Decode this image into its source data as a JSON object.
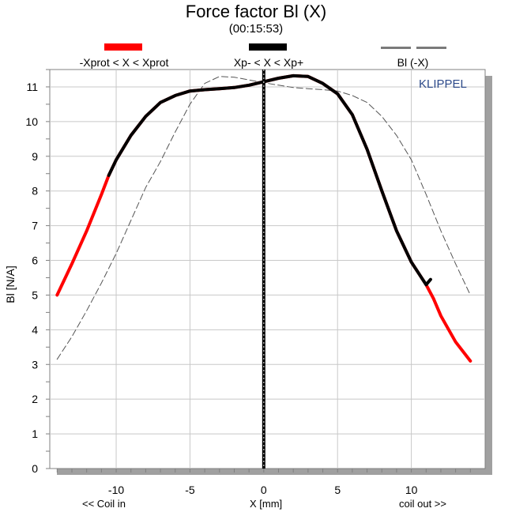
{
  "chart_data": {
    "type": "line",
    "title": "Force factor Bl (X)",
    "subtitle": "(00:15:53)",
    "xlabel": "X [mm]",
    "ylabel": "Bl [N/A]",
    "x_note_left": "<< Coil in",
    "x_note_right": "coil out >>",
    "watermark": "KLIPPEL",
    "xlim": [
      -14.5,
      15
    ],
    "ylim": [
      0,
      11.5
    ],
    "x_ticks": [
      -10,
      -5,
      0,
      5,
      10
    ],
    "y_ticks": [
      0,
      1,
      2,
      3,
      4,
      5,
      6,
      7,
      8,
      9,
      10,
      11
    ],
    "grid": true,
    "legend_position": "top",
    "vertical_marker_x": 0,
    "series": [
      {
        "name": "-Xprot < X < Xprot",
        "color": "#ff0000",
        "style": "solid-thick",
        "x": [
          -14,
          -13,
          -12,
          -11,
          -10.5,
          -10,
          -9,
          -8,
          -7,
          -6,
          -5,
          -4,
          -3,
          -2,
          -1,
          0,
          1,
          2,
          3,
          4,
          5,
          6,
          7,
          8,
          9,
          10,
          11,
          11.5,
          12,
          13,
          14
        ],
        "y": [
          5.0,
          5.9,
          6.85,
          7.9,
          8.45,
          8.9,
          9.6,
          10.15,
          10.55,
          10.75,
          10.88,
          10.92,
          10.95,
          10.98,
          11.05,
          11.15,
          11.25,
          11.32,
          11.3,
          11.1,
          10.8,
          10.2,
          9.2,
          8.0,
          6.85,
          5.95,
          5.3,
          4.9,
          4.4,
          3.65,
          3.1
        ]
      },
      {
        "name": "Xp- < X < Xp+",
        "color": "#000000",
        "style": "solid-thick",
        "x": [
          -10.5,
          -10,
          -9,
          -8,
          -7,
          -6,
          -5,
          -4,
          -3,
          -2,
          -1,
          0,
          1,
          2,
          3,
          4,
          5,
          6,
          7,
          8,
          9,
          10,
          11,
          11.3
        ],
        "y": [
          8.45,
          8.9,
          9.6,
          10.15,
          10.55,
          10.75,
          10.88,
          10.92,
          10.95,
          10.98,
          11.05,
          11.15,
          11.25,
          11.32,
          11.3,
          11.1,
          10.8,
          10.2,
          9.2,
          8.0,
          6.85,
          5.95,
          5.3,
          5.45
        ]
      },
      {
        "name": "Bl (-X)",
        "color": "#555555",
        "style": "dashed-thin",
        "x": [
          -14,
          -13,
          -12,
          -11,
          -10,
          -9,
          -8,
          -7,
          -6,
          -5,
          -4,
          -3,
          -2,
          -1,
          0,
          1,
          2,
          3,
          4,
          5,
          6,
          7,
          8,
          9,
          10,
          11,
          12,
          13,
          14
        ],
        "y": [
          3.15,
          3.8,
          4.55,
          5.35,
          6.2,
          7.15,
          8.1,
          8.85,
          9.7,
          10.5,
          11.1,
          11.3,
          11.28,
          11.2,
          11.12,
          11.05,
          10.98,
          10.95,
          10.92,
          10.88,
          10.75,
          10.55,
          10.15,
          9.6,
          8.9,
          7.9,
          6.85,
          5.9,
          5.0
        ]
      }
    ]
  }
}
